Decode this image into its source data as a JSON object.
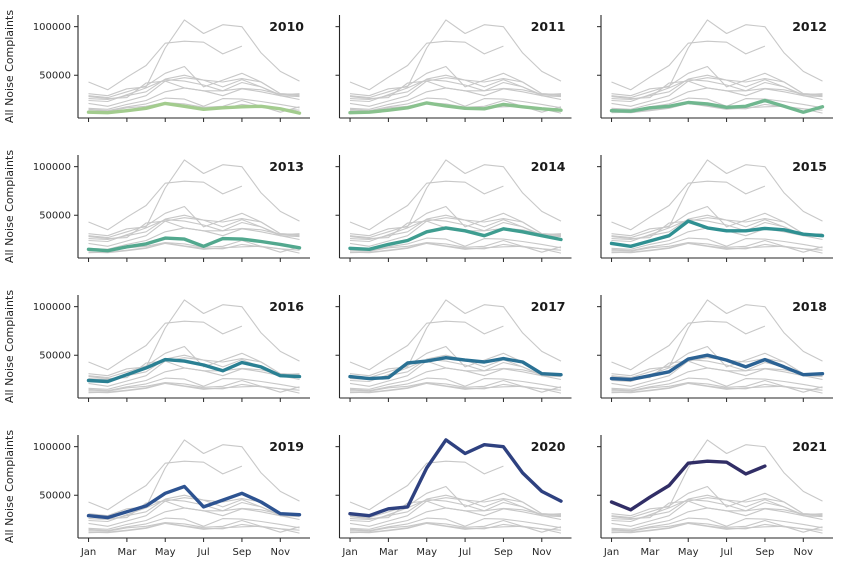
{
  "figure": {
    "background_color": "#ffffff",
    "gray_line_color": "#c8c8c8",
    "spine_color": "#262626",
    "text_color": "#262626",
    "title_color": "#1a1a1a"
  },
  "chart_data": {
    "type": "line",
    "layout": "facet-grid 4 rows x 3 cols, shared axes, despined (left+bottom spines only), each facet highlights one year over gray lines of all years",
    "title": "",
    "xlabel": "",
    "ylabel": "All Noise Complaints",
    "x": [
      "Jan",
      "Feb",
      "Mar",
      "Apr",
      "May",
      "Jun",
      "Jul",
      "Aug",
      "Sep",
      "Oct",
      "Nov",
      "Dec"
    ],
    "x_tick_indices": [
      0,
      2,
      4,
      6,
      8,
      10
    ],
    "x_tick_labels": [
      "Jan",
      "Mar",
      "May",
      "Jul",
      "Sep",
      "Nov"
    ],
    "y_ticks": [
      50000,
      100000
    ],
    "y_tick_labels": [
      "50000",
      "100000"
    ],
    "ylim": [
      6000,
      112000
    ],
    "grid": false,
    "legend": "none",
    "facets": [
      "2010",
      "2011",
      "2012",
      "2013",
      "2014",
      "2015",
      "2016",
      "2017",
      "2018",
      "2019",
      "2020",
      "2021"
    ],
    "series": [
      {
        "name": "2010",
        "color": "#a3cc8e",
        "values": [
          12000,
          11500,
          13500,
          16000,
          21000,
          18000,
          15000,
          16500,
          17500,
          18000,
          15500,
          11000
        ]
      },
      {
        "name": "2011",
        "color": "#8ac28e",
        "values": [
          11500,
          12000,
          14000,
          16500,
          21500,
          18500,
          16000,
          15500,
          20000,
          17500,
          15500,
          14000
        ]
      },
      {
        "name": "2012",
        "color": "#70b78f",
        "values": [
          13500,
          13000,
          16500,
          18000,
          22000,
          20500,
          17000,
          18000,
          24000,
          18000,
          12000,
          17500
        ]
      },
      {
        "name": "2013",
        "color": "#52a88e",
        "values": [
          15000,
          13500,
          17500,
          20500,
          26500,
          25500,
          18000,
          26000,
          25500,
          23000,
          20000,
          16500
        ]
      },
      {
        "name": "2014",
        "color": "#3f9d90",
        "values": [
          16000,
          15000,
          20000,
          24000,
          33000,
          37000,
          34000,
          29000,
          36000,
          33000,
          29000,
          25000
        ]
      },
      {
        "name": "2015",
        "color": "#2f9092",
        "values": [
          21000,
          18000,
          23500,
          29000,
          44000,
          37000,
          34000,
          34000,
          36500,
          35000,
          30500,
          29000
        ]
      },
      {
        "name": "2016",
        "color": "#2a8093",
        "values": [
          24000,
          23000,
          30000,
          37000,
          45500,
          44000,
          40000,
          34000,
          42500,
          38000,
          29000,
          28000
        ]
      },
      {
        "name": "2017",
        "color": "#2a7194",
        "values": [
          28000,
          26000,
          27000,
          42000,
          44000,
          47500,
          45000,
          43000,
          46500,
          43000,
          31000,
          30000
        ]
      },
      {
        "name": "2018",
        "color": "#2b6294",
        "values": [
          26000,
          25000,
          29000,
          33000,
          46000,
          50000,
          45000,
          38000,
          45500,
          38000,
          30000,
          31000
        ]
      },
      {
        "name": "2019",
        "color": "#2d5391",
        "values": [
          29000,
          27000,
          33000,
          39000,
          52000,
          59000,
          38000,
          45000,
          52000,
          43000,
          31000,
          30000
        ]
      },
      {
        "name": "2020",
        "color": "#2e4180",
        "values": [
          31000,
          29000,
          36000,
          38000,
          78000,
          107000,
          93000,
          102000,
          100000,
          73000,
          54000,
          44000
        ]
      },
      {
        "name": "2021",
        "color": "#312e66",
        "values": [
          43000,
          35000,
          48000,
          60000,
          83000,
          85000,
          84000,
          72000,
          80000
        ]
      }
    ]
  }
}
